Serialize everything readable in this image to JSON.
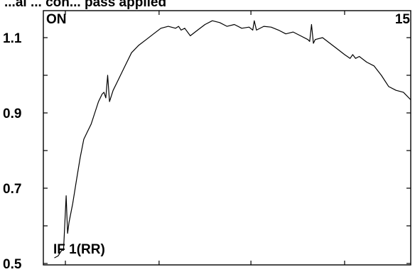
{
  "title_partial": "...al ... con... pass applied",
  "chart_data": {
    "type": "line",
    "title": "...al ... con... pass applied",
    "xlabel": "",
    "ylabel": "",
    "ylim": [
      0.5,
      1.15
    ],
    "xlim": [
      0,
      100
    ],
    "y_ticks": [
      0.5,
      0.7,
      0.9,
      1.1
    ],
    "y_tick_labels": [
      "0.5",
      "0.7",
      "0.9",
      "1.1"
    ],
    "y_minor_ticks": [
      0.6,
      0.8,
      1.0
    ],
    "x_major_ticks": [
      6,
      31.5,
      56.5,
      82
    ],
    "grid": false,
    "annotations": {
      "top_left": "ON",
      "top_right": "15",
      "bottom_left": "IF 1(RR)"
    },
    "series": [
      {
        "x": [
          3,
          4,
          5,
          5.5,
          6.2,
          6.6,
          7,
          8,
          9,
          10,
          11,
          12,
          13,
          14,
          15,
          16,
          16.5,
          17,
          17.5,
          18,
          19,
          20,
          22,
          24,
          26,
          28,
          30,
          32,
          34,
          36,
          36.8,
          37.5,
          38.5,
          40,
          42,
          44,
          46,
          48,
          50,
          52,
          54,
          56,
          57,
          57.4,
          58,
          60,
          62,
          64,
          66,
          68,
          70,
          72,
          72.5,
          73,
          73.5,
          74,
          76,
          78,
          80,
          82,
          83.5,
          84.2,
          85,
          86,
          88,
          90,
          92,
          94,
          96,
          98,
          100
        ],
        "y": [
          0.515,
          0.52,
          0.535,
          0.535,
          0.68,
          0.58,
          0.61,
          0.66,
          0.72,
          0.78,
          0.83,
          0.85,
          0.87,
          0.9,
          0.93,
          0.95,
          0.955,
          0.94,
          1.0,
          0.93,
          0.96,
          0.98,
          1.02,
          1.06,
          1.08,
          1.095,
          1.11,
          1.125,
          1.13,
          1.125,
          1.13,
          1.12,
          1.125,
          1.105,
          1.12,
          1.135,
          1.145,
          1.14,
          1.13,
          1.135,
          1.125,
          1.128,
          1.12,
          1.145,
          1.12,
          1.13,
          1.128,
          1.12,
          1.11,
          1.115,
          1.105,
          1.095,
          1.09,
          1.135,
          1.085,
          1.095,
          1.1,
          1.085,
          1.07,
          1.055,
          1.045,
          1.055,
          1.045,
          1.05,
          1.035,
          1.025,
          1.0,
          0.97,
          0.96,
          0.955,
          0.935
        ]
      }
    ]
  }
}
